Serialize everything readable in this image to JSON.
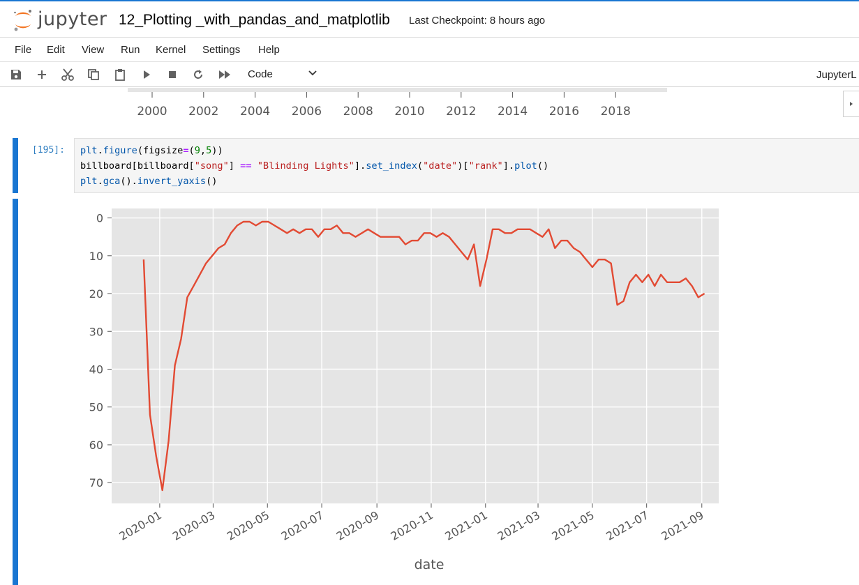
{
  "header": {
    "brand": "jupyter",
    "notebook_title": "12_Plotting _with_pandas_and_matplotlib",
    "checkpoint": "Last Checkpoint: 8 hours ago"
  },
  "menu": [
    "File",
    "Edit",
    "View",
    "Run",
    "Kernel",
    "Settings",
    "Help"
  ],
  "toolbar": {
    "icons": [
      "save-icon",
      "add-icon",
      "cut-icon",
      "copy-icon",
      "paste-icon",
      "run-icon",
      "stop-icon",
      "restart-icon",
      "fast-forward-icon"
    ],
    "cell_type": "Code",
    "kernel_label": "JupyterL"
  },
  "previous_output": {
    "x_ticks": [
      "2000",
      "2002",
      "2004",
      "2006",
      "2008",
      "2010",
      "2012",
      "2014",
      "2016",
      "2018"
    ]
  },
  "cell": {
    "prompt": "[195]:",
    "code": [
      "plt.figure(figsize=(9,5))",
      "billboard[billboard[\"song\"] == \"Blinding Lights\"].set_index(\"date\")[\"rank\"].plot()",
      "plt.gca().invert_yaxis()"
    ]
  },
  "chart_data": {
    "type": "line",
    "title": "",
    "xlabel": "date",
    "ylabel": "",
    "x_ticks": [
      "2020-01",
      "2020-03",
      "2020-05",
      "2020-07",
      "2020-09",
      "2020-11",
      "2021-01",
      "2021-03",
      "2021-05",
      "2021-07",
      "2021-09"
    ],
    "y_ticks": [
      0,
      10,
      20,
      30,
      40,
      50,
      60,
      70
    ],
    "y_inverted": true,
    "ylim": [
      75.5,
      -2.5
    ],
    "xlim": [
      "2019-11-08",
      "2021-09-20"
    ],
    "grid": true,
    "line_color": "#e24a33",
    "series": [
      {
        "x": [
          "2019-12-14",
          "2019-12-21",
          "2019-12-28",
          "2020-01-04",
          "2020-01-11",
          "2020-01-18",
          "2020-01-25",
          "2020-02-01",
          "2020-02-08",
          "2020-02-15",
          "2020-02-22",
          "2020-02-29",
          "2020-03-07",
          "2020-03-14",
          "2020-03-21",
          "2020-03-28",
          "2020-04-04",
          "2020-04-11",
          "2020-04-18",
          "2020-04-25",
          "2020-05-02",
          "2020-05-09",
          "2020-05-16",
          "2020-05-23",
          "2020-05-30",
          "2020-06-06",
          "2020-06-13",
          "2020-06-20",
          "2020-06-27",
          "2020-07-04",
          "2020-07-11",
          "2020-07-18",
          "2020-07-25",
          "2020-08-01",
          "2020-08-08",
          "2020-08-15",
          "2020-08-22",
          "2020-08-29",
          "2020-09-05",
          "2020-09-12",
          "2020-09-19",
          "2020-09-26",
          "2020-10-03",
          "2020-10-10",
          "2020-10-17",
          "2020-10-24",
          "2020-10-31",
          "2020-11-07",
          "2020-11-14",
          "2020-11-21",
          "2020-11-28",
          "2020-12-05",
          "2020-12-12",
          "2020-12-19",
          "2020-12-26",
          "2021-01-02",
          "2021-01-09",
          "2021-01-16",
          "2021-01-23",
          "2021-01-30",
          "2021-02-06",
          "2021-02-13",
          "2021-02-20",
          "2021-02-27",
          "2021-03-06",
          "2021-03-13",
          "2021-03-20",
          "2021-03-27",
          "2021-04-03",
          "2021-04-10",
          "2021-04-17",
          "2021-04-24",
          "2021-05-01",
          "2021-05-08",
          "2021-05-15",
          "2021-05-22",
          "2021-05-29",
          "2021-06-05",
          "2021-06-12",
          "2021-06-19",
          "2021-06-26",
          "2021-07-03",
          "2021-07-10",
          "2021-07-17",
          "2021-07-24",
          "2021-07-31",
          "2021-08-07",
          "2021-08-14",
          "2021-08-21",
          "2021-08-28",
          "2021-09-04"
        ],
        "y": [
          11,
          52,
          63,
          72,
          59,
          39,
          32,
          21,
          18,
          15,
          12,
          10,
          8,
          7,
          4,
          2,
          1,
          1,
          2,
          1,
          1,
          2,
          3,
          4,
          3,
          4,
          3,
          3,
          5,
          3,
          3,
          2,
          4,
          4,
          5,
          4,
          3,
          4,
          5,
          5,
          5,
          5,
          7,
          6,
          6,
          4,
          4,
          5,
          4,
          5,
          7,
          9,
          11,
          7,
          18,
          11,
          3,
          3,
          4,
          4,
          3,
          3,
          3,
          4,
          5,
          3,
          8,
          6,
          6,
          8,
          9,
          11,
          13,
          11,
          11,
          12,
          23,
          22,
          17,
          15,
          17,
          15,
          18,
          15,
          17,
          17,
          17,
          16,
          18,
          21,
          20
        ]
      }
    ]
  }
}
